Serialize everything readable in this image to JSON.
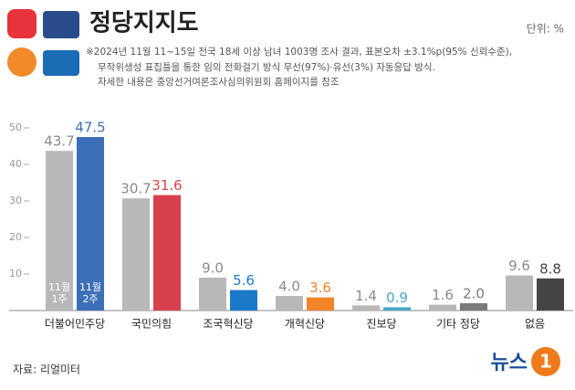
{
  "chart_data": {
    "type": "bar",
    "title": "정당지지도",
    "unit": "단위: %",
    "notes": [
      "※2024년 11월 11~15일 전국 18세 이상 남녀 1003명 조사 결과, 표본오차 ±3.1%p(95% 신뢰수준),",
      "무작위생성 표집틀을 통한 임의 전화걸기 방식 무선(97%)·유선(3%) 자동응답 방식.",
      "자세한 내용은 중앙선거여론조사심의위원회 홈페이지를 참조"
    ],
    "source": "자료: 리얼미터",
    "logo": [
      "뉴스",
      "1"
    ],
    "categories": [
      "더불어민주당",
      "국민의힘",
      "조국혁신당",
      "개혁신당",
      "진보당",
      "기타 정당",
      "없음"
    ],
    "series": [
      {
        "name": "11월 1주",
        "color": "#b8b8b8",
        "label_color": "#8a8a8a",
        "values": [
          43.7,
          30.7,
          9.0,
          4.0,
          1.4,
          1.6,
          9.6
        ],
        "value_labels": [
          "43.7",
          "30.7",
          "9.0",
          "4.0",
          "1.4",
          "1.6",
          "9.6"
        ]
      },
      {
        "name": "11월 2주",
        "colors": [
          "#3d6fb8",
          "#d8414b",
          "#1b79c9",
          "#f2842b",
          "#48a6c9",
          "#7a7a7a",
          "#454545"
        ],
        "values": [
          47.5,
          31.6,
          5.6,
          3.6,
          0.9,
          2.0,
          8.8
        ],
        "value_labels": [
          "47.5",
          "31.6",
          "5.6",
          "3.6",
          "0.9",
          "2.0",
          "8.8"
        ]
      }
    ],
    "ylim": [
      0,
      50
    ],
    "yticks": [
      10,
      20,
      30,
      40,
      50
    ]
  }
}
